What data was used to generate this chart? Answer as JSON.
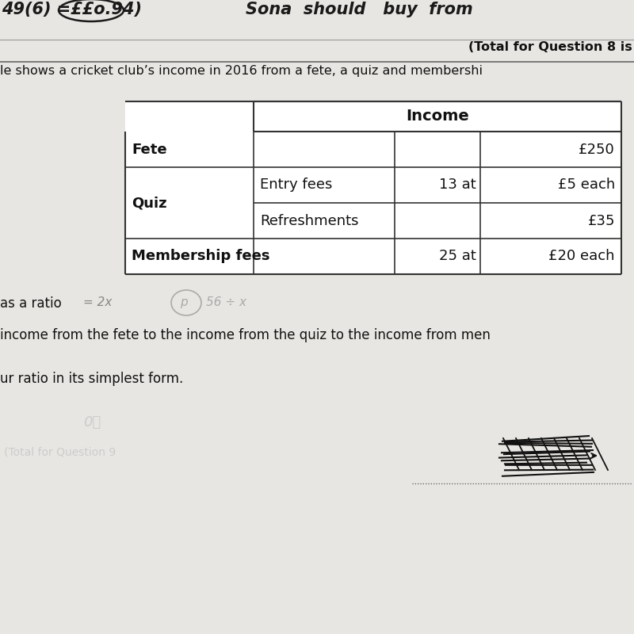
{
  "background_color": "#d8d6d2",
  "page_color": "#e8e6e2",
  "table_bg": "#ffffff",
  "header_text": "Income",
  "rows": [
    {
      "col1": "Fete",
      "col1_bold": true,
      "col2": "",
      "col3": "",
      "col4": "£250"
    },
    {
      "col1": "Quiz",
      "col1_bold": true,
      "col2": "Entry fees",
      "col3": "13 at",
      "col4": "£5 each"
    },
    {
      "col1": "",
      "col1_bold": false,
      "col2": "Refreshments",
      "col3": "",
      "col4": "£35"
    },
    {
      "col1": "Membership fees",
      "col1_bold": true,
      "col2": "",
      "col3": "25 at",
      "col4": "£20 each"
    }
  ],
  "top_text_left": "49(6) =££o.94)",
  "top_text_right": "Sona  should   buy  from",
  "total_q_text": "(Total for Question 8 is",
  "bottom_text1": "le shows a cricket club’s income in 2016 from a fete, a quiz and membershi",
  "bottom_text2": "as a ratio",
  "bottom_text3": "income from the fete to the income from the quiz to the income from men",
  "bottom_text4": "ur ratio in its simplest form.",
  "line_color": "#333333",
  "font_size_header": 14,
  "font_size_body": 13
}
